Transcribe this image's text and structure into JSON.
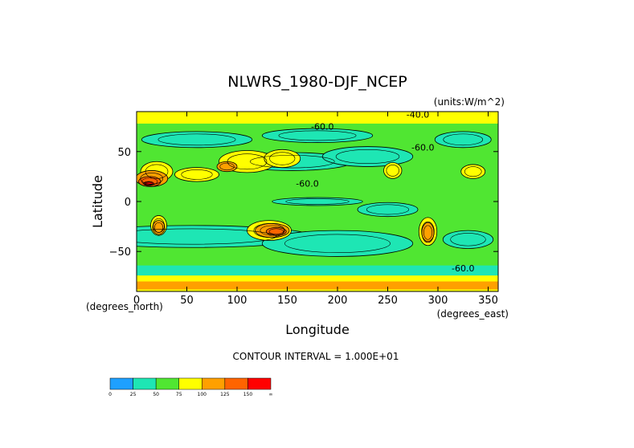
{
  "chart_data": {
    "type": "heatmap",
    "title": "NLWRS_1980-DJF_NCEP",
    "units_label": "(units:W/m^2)",
    "xlabel": "Longitude",
    "ylabel": "Latitude",
    "x_unit_label": "(degrees_east)",
    "y_unit_label": "(degrees_north)",
    "xlim": [
      0,
      360
    ],
    "ylim": [
      -90,
      90
    ],
    "x_ticks": [
      0,
      50,
      100,
      150,
      200,
      250,
      300,
      350
    ],
    "y_ticks": [
      -50,
      0,
      50
    ],
    "x_tick_labels": [
      "0",
      "50",
      "100",
      "150",
      "200",
      "250",
      "300",
      "350"
    ],
    "y_tick_labels": [
      "-50",
      "0",
      "50"
    ],
    "contour_interval_label": "CONTOUR INTERVAL = 1.000E+01",
    "contour_labels": [
      {
        "text": "-60.0",
        "lon": 170,
        "lat": 15
      },
      {
        "text": "-60.0",
        "lon": 285,
        "lat": 51
      },
      {
        "text": "-60.0",
        "lon": 185,
        "lat": 72
      },
      {
        "text": "-40.0",
        "lon": 280,
        "lat": 84
      },
      {
        "text": "-60.0",
        "lon": 325,
        "lat": -70
      }
    ],
    "colorbar": {
      "levels": [
        0,
        25,
        50,
        75,
        100,
        125,
        150
      ],
      "tick_labels": [
        "0",
        "25",
        "50",
        "75",
        "100",
        "125",
        "150",
        "∞"
      ],
      "colors": [
        "#1ea0ff",
        "#1ee6b4",
        "#50e632",
        "#ffff00",
        "#ffa000",
        "#ff6400",
        "#ff0000"
      ]
    },
    "colors": {
      "cyan": "#1ee6b4",
      "green": "#50e632",
      "yellow": "#ffff00",
      "orange": "#ffa000",
      "darkorange": "#ff6400",
      "red": "#ff0000",
      "blue": "#1ea0ff"
    },
    "field": {
      "background_level": "green",
      "regions": [
        {
          "level": "cyan",
          "lon": 55,
          "lat": -35,
          "rlon": 120,
          "rlat": 11
        },
        {
          "level": "cyan",
          "lon": 200,
          "lat": -42,
          "rlon": 75,
          "rlat": 13
        },
        {
          "level": "cyan",
          "lon": 330,
          "lat": -38,
          "rlon": 25,
          "rlat": 9
        },
        {
          "level": "cyan",
          "lon": 250,
          "lat": -8,
          "rlon": 30,
          "rlat": 7
        },
        {
          "level": "cyan",
          "lon": 155,
          "lat": 40,
          "rlon": 60,
          "rlat": 9
        },
        {
          "level": "cyan",
          "lon": 230,
          "lat": 45,
          "rlon": 45,
          "rlat": 10
        },
        {
          "level": "cyan",
          "lon": 60,
          "lat": 62,
          "rlon": 55,
          "rlat": 8
        },
        {
          "level": "cyan",
          "lon": 180,
          "lat": 66,
          "rlon": 55,
          "rlat": 7
        },
        {
          "level": "cyan",
          "lon": 325,
          "lat": 62,
          "rlon": 28,
          "rlat": 8
        },
        {
          "level": "cyan",
          "lon": 180,
          "lat": 0,
          "rlon": 45,
          "rlat": 4
        },
        {
          "level": "yellow",
          "lon": 20,
          "lat": 30,
          "rlon": 16,
          "rlat": 10
        },
        {
          "level": "yellow",
          "lon": 60,
          "lat": 27,
          "rlon": 22,
          "rlat": 7
        },
        {
          "level": "yellow",
          "lon": 110,
          "lat": 40,
          "rlon": 28,
          "rlat": 11
        },
        {
          "level": "yellow",
          "lon": 145,
          "lat": 43,
          "rlon": 18,
          "rlat": 9
        },
        {
          "level": "yellow",
          "lon": 255,
          "lat": 31,
          "rlon": 9,
          "rlat": 8
        },
        {
          "level": "yellow",
          "lon": 335,
          "lat": 30,
          "rlon": 12,
          "rlat": 7
        },
        {
          "level": "yellow",
          "lon": 22,
          "lat": -24,
          "rlon": 8,
          "rlat": 10
        },
        {
          "level": "yellow",
          "lon": 132,
          "lat": -29,
          "rlon": 22,
          "rlat": 10
        },
        {
          "level": "yellow",
          "lon": 290,
          "lat": -30,
          "rlon": 9,
          "rlat": 14
        },
        {
          "level": "orange",
          "lon": 15,
          "lat": 23,
          "rlon": 16,
          "rlat": 8
        },
        {
          "level": "orange",
          "lon": 135,
          "lat": -29,
          "rlon": 17,
          "rlat": 7
        },
        {
          "level": "orange",
          "lon": 22,
          "lat": -26,
          "rlon": 6,
          "rlat": 7
        },
        {
          "level": "orange",
          "lon": 290,
          "lat": -31,
          "rlon": 6,
          "rlat": 10
        },
        {
          "level": "orange",
          "lon": 90,
          "lat": 35,
          "rlon": 10,
          "rlat": 5
        },
        {
          "level": "darkorange",
          "lon": 13,
          "lat": 20,
          "rlon": 11,
          "rlat": 5
        },
        {
          "level": "darkorange",
          "lon": 139,
          "lat": -30,
          "rlon": 10,
          "rlat": 4
        },
        {
          "level": "red",
          "lon": 12,
          "lat": 18,
          "rlon": 5,
          "rlat": 2
        }
      ],
      "bands": [
        {
          "level": "yellow",
          "lat_min": 78,
          "lat_max": 90
        },
        {
          "level": "yellow",
          "lat_min": -90,
          "lat_max": -74
        },
        {
          "level": "orange",
          "lat_min": -88,
          "lat_max": -80
        },
        {
          "level": "cyan",
          "lat_min": -74,
          "lat_max": -64
        }
      ]
    }
  }
}
